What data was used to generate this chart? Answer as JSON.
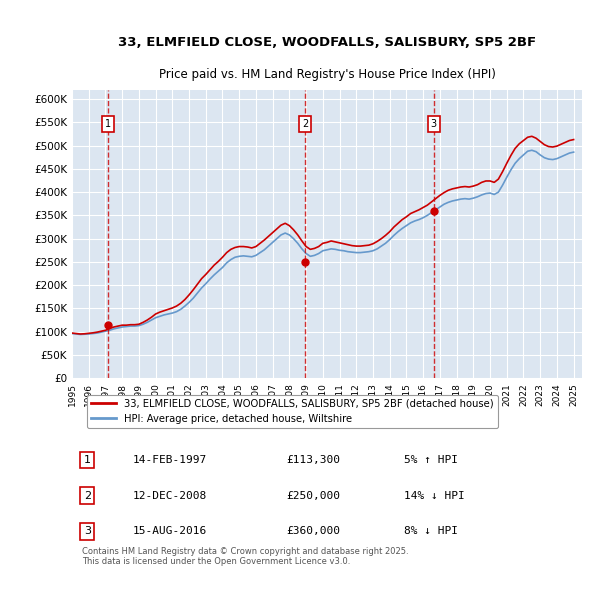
{
  "title": "33, ELMFIELD CLOSE, WOODFALLS, SALISBURY, SP5 2BF",
  "subtitle": "Price paid vs. HM Land Registry's House Price Index (HPI)",
  "ylim": [
    0,
    620000
  ],
  "yticks": [
    0,
    50000,
    100000,
    150000,
    200000,
    250000,
    300000,
    350000,
    400000,
    450000,
    500000,
    550000,
    600000
  ],
  "ytick_labels": [
    "£0",
    "£50K",
    "£100K",
    "£150K",
    "£200K",
    "£250K",
    "£300K",
    "£350K",
    "£400K",
    "£450K",
    "£500K",
    "£550K",
    "£600K"
  ],
  "bg_color": "#dce6f1",
  "plot_bg_color": "#dce6f1",
  "grid_color": "#ffffff",
  "sale_dates": [
    "1997-02-14",
    "2008-12-12",
    "2016-08-15"
  ],
  "sale_prices": [
    113300,
    250000,
    360000
  ],
  "sale_labels": [
    "1",
    "2",
    "3"
  ],
  "sale_box_color": "#ffffff",
  "sale_box_edge": "#cc0000",
  "sale_line_color": "#cc0000",
  "hpi_line_color": "#6699cc",
  "price_line_color": "#cc0000",
  "legend_entries": [
    "33, ELMFIELD CLOSE, WOODFALLS, SALISBURY, SP5 2BF (detached house)",
    "HPI: Average price, detached house, Wiltshire"
  ],
  "table_rows": [
    {
      "label": "1",
      "date": "14-FEB-1997",
      "price": "£113,300",
      "hpi": "5% ↑ HPI"
    },
    {
      "label": "2",
      "date": "12-DEC-2008",
      "price": "£250,000",
      "hpi": "14% ↓ HPI"
    },
    {
      "label": "3",
      "date": "15-AUG-2016",
      "price": "£360,000",
      "hpi": "8% ↓ HPI"
    }
  ],
  "footer": "Contains HM Land Registry data © Crown copyright and database right 2025.\nThis data is licensed under the Open Government Licence v3.0.",
  "hpi_data": {
    "years": [
      1995,
      1995.25,
      1995.5,
      1995.75,
      1996,
      1996.25,
      1996.5,
      1996.75,
      1997,
      1997.25,
      1997.5,
      1997.75,
      1998,
      1998.25,
      1998.5,
      1998.75,
      1999,
      1999.25,
      1999.5,
      1999.75,
      2000,
      2000.25,
      2000.5,
      2000.75,
      2001,
      2001.25,
      2001.5,
      2001.75,
      2002,
      2002.25,
      2002.5,
      2002.75,
      2003,
      2003.25,
      2003.5,
      2003.75,
      2004,
      2004.25,
      2004.5,
      2004.75,
      2005,
      2005.25,
      2005.5,
      2005.75,
      2006,
      2006.25,
      2006.5,
      2006.75,
      2007,
      2007.25,
      2007.5,
      2007.75,
      2008,
      2008.25,
      2008.5,
      2008.75,
      2009,
      2009.25,
      2009.5,
      2009.75,
      2010,
      2010.25,
      2010.5,
      2010.75,
      2011,
      2011.25,
      2011.5,
      2011.75,
      2012,
      2012.25,
      2012.5,
      2012.75,
      2013,
      2013.25,
      2013.5,
      2013.75,
      2014,
      2014.25,
      2014.5,
      2014.75,
      2015,
      2015.25,
      2015.5,
      2015.75,
      2016,
      2016.25,
      2016.5,
      2016.75,
      2017,
      2017.25,
      2017.5,
      2017.75,
      2018,
      2018.25,
      2018.5,
      2018.75,
      2019,
      2019.25,
      2019.5,
      2019.75,
      2020,
      2020.25,
      2020.5,
      2020.75,
      2021,
      2021.25,
      2021.5,
      2021.75,
      2022,
      2022.25,
      2022.5,
      2022.75,
      2023,
      2023.25,
      2023.5,
      2023.75,
      2024,
      2024.25,
      2024.5,
      2024.75,
      2025
    ],
    "values": [
      96000,
      95000,
      94000,
      94500,
      95000,
      96000,
      97000,
      99000,
      101000,
      103000,
      106000,
      108000,
      110000,
      111000,
      112000,
      112000,
      113000,
      116000,
      120000,
      125000,
      130000,
      133000,
      136000,
      138000,
      140000,
      143000,
      148000,
      155000,
      163000,
      172000,
      183000,
      194000,
      203000,
      213000,
      222000,
      230000,
      238000,
      248000,
      255000,
      260000,
      262000,
      263000,
      262000,
      261000,
      264000,
      270000,
      276000,
      284000,
      292000,
      300000,
      308000,
      312000,
      308000,
      300000,
      290000,
      278000,
      268000,
      262000,
      264000,
      268000,
      274000,
      276000,
      278000,
      277000,
      275000,
      274000,
      272000,
      271000,
      270000,
      270000,
      271000,
      272000,
      274000,
      278000,
      284000,
      290000,
      298000,
      307000,
      315000,
      322000,
      328000,
      334000,
      338000,
      341000,
      345000,
      350000,
      356000,
      362000,
      368000,
      374000,
      378000,
      381000,
      383000,
      385000,
      386000,
      385000,
      387000,
      390000,
      394000,
      397000,
      398000,
      395000,
      400000,
      415000,
      432000,
      448000,
      462000,
      472000,
      480000,
      488000,
      490000,
      487000,
      480000,
      474000,
      471000,
      470000,
      472000,
      476000,
      480000,
      484000,
      486000
    ]
  },
  "price_paid_data": {
    "years": [
      1995,
      1995.25,
      1995.5,
      1995.75,
      1996,
      1996.25,
      1996.5,
      1996.75,
      1997,
      1997.25,
      1997.5,
      1997.75,
      1998,
      1998.25,
      1998.5,
      1998.75,
      1999,
      1999.25,
      1999.5,
      1999.75,
      2000,
      2000.25,
      2000.5,
      2000.75,
      2001,
      2001.25,
      2001.5,
      2001.75,
      2002,
      2002.25,
      2002.5,
      2002.75,
      2003,
      2003.25,
      2003.5,
      2003.75,
      2004,
      2004.25,
      2004.5,
      2004.75,
      2005,
      2005.25,
      2005.5,
      2005.75,
      2006,
      2006.25,
      2006.5,
      2006.75,
      2007,
      2007.25,
      2007.5,
      2007.75,
      2008,
      2008.25,
      2008.5,
      2008.75,
      2009,
      2009.25,
      2009.5,
      2009.75,
      2010,
      2010.25,
      2010.5,
      2010.75,
      2011,
      2011.25,
      2011.5,
      2011.75,
      2012,
      2012.25,
      2012.5,
      2012.75,
      2013,
      2013.25,
      2013.5,
      2013.75,
      2014,
      2014.25,
      2014.5,
      2014.75,
      2015,
      2015.25,
      2015.5,
      2015.75,
      2016,
      2016.25,
      2016.5,
      2016.75,
      2017,
      2017.25,
      2017.5,
      2017.75,
      2018,
      2018.25,
      2018.5,
      2018.75,
      2019,
      2019.25,
      2019.5,
      2019.75,
      2020,
      2020.25,
      2020.5,
      2020.75,
      2021,
      2021.25,
      2021.5,
      2021.75,
      2022,
      2022.25,
      2022.5,
      2022.75,
      2023,
      2023.25,
      2023.5,
      2023.75,
      2024,
      2024.25,
      2024.5,
      2024.75,
      2025
    ],
    "values": [
      97000,
      96000,
      95000,
      95500,
      96500,
      97500,
      99000,
      101000,
      103000,
      107000,
      110000,
      112000,
      114000,
      114000,
      115000,
      115000,
      116000,
      120000,
      125000,
      131000,
      138000,
      142000,
      145000,
      148000,
      151000,
      155000,
      161000,
      169000,
      179000,
      190000,
      202000,
      214000,
      223000,
      233000,
      243000,
      251000,
      260000,
      270000,
      277000,
      281000,
      283000,
      283000,
      282000,
      280000,
      283000,
      290000,
      297000,
      305000,
      313000,
      321000,
      329000,
      333000,
      328000,
      319000,
      308000,
      295000,
      283000,
      277000,
      279000,
      283000,
      290000,
      292000,
      295000,
      293000,
      291000,
      289000,
      287000,
      285000,
      284000,
      284000,
      285000,
      286000,
      289000,
      294000,
      300000,
      307000,
      315000,
      325000,
      333000,
      341000,
      347000,
      354000,
      358000,
      362000,
      367000,
      372000,
      379000,
      386000,
      393000,
      399000,
      404000,
      407000,
      409000,
      411000,
      412000,
      411000,
      413000,
      416000,
      421000,
      424000,
      424000,
      421000,
      428000,
      444000,
      462000,
      479000,
      494000,
      504000,
      511000,
      518000,
      520000,
      516000,
      509000,
      502000,
      498000,
      497000,
      499000,
      503000,
      507000,
      511000,
      513000
    ]
  }
}
